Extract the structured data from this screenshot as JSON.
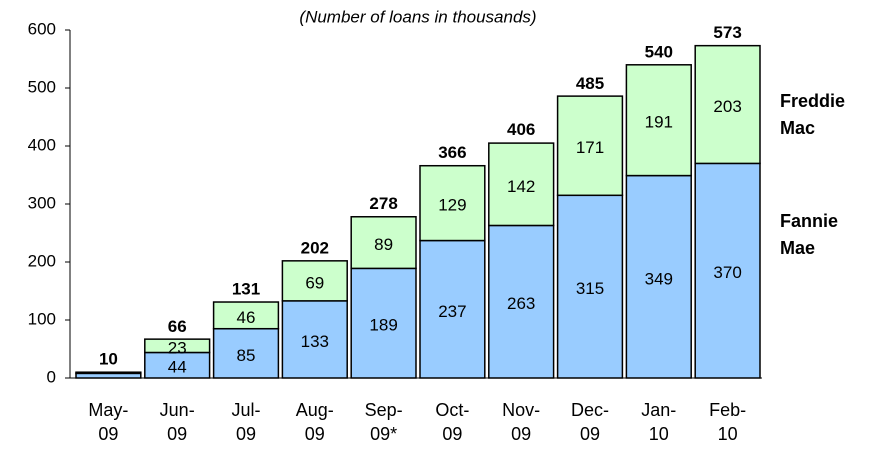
{
  "chart_data": {
    "type": "stacked_bar",
    "subtitle": "(Number of loans in thousands)",
    "categories": [
      "May-\n09",
      "Jun-\n09",
      "Jul-\n09",
      "Aug-\n09",
      "Sep-\n09*",
      "Oct-\n09",
      "Nov-\n09",
      "Dec-\n09",
      "Jan-\n10",
      "Feb-\n10"
    ],
    "series": [
      {
        "name": "Fannie Mae",
        "color": "#99ccff",
        "values": [
          8,
          44,
          85,
          133,
          189,
          237,
          263,
          315,
          349,
          370
        ],
        "value_labels": [
          null,
          "44",
          "85",
          "133",
          "189",
          "237",
          "263",
          "315",
          "349",
          "370"
        ]
      },
      {
        "name": "Freddie Mac",
        "color": "#ccffcc",
        "values": [
          2,
          23,
          46,
          69,
          89,
          129,
          142,
          171,
          191,
          203
        ],
        "value_labels": [
          null,
          "23",
          "46",
          "69",
          "89",
          "129",
          "142",
          "171",
          "191",
          "203"
        ]
      }
    ],
    "totals": [
      10,
      66,
      131,
      202,
      278,
      366,
      406,
      485,
      540,
      573
    ],
    "ylim": [
      0,
      600
    ],
    "yticks": [
      0,
      100,
      200,
      300,
      400,
      500,
      600
    ],
    "grid": false
  }
}
